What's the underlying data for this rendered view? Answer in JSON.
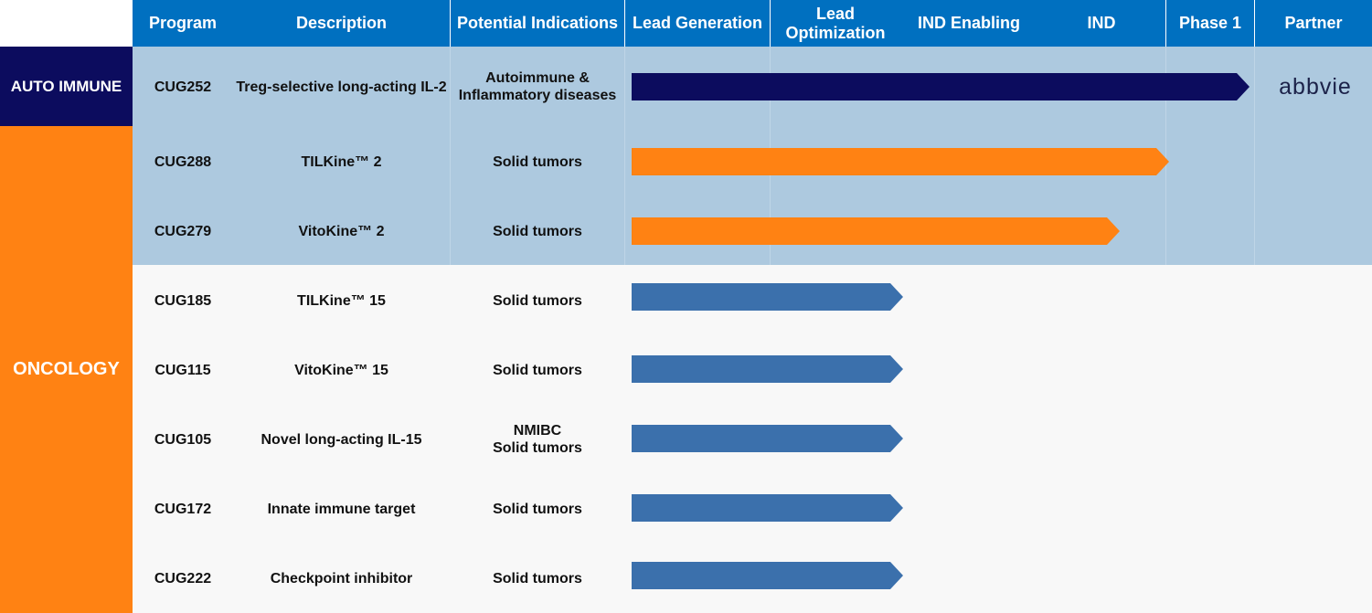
{
  "header": {
    "program": "Program",
    "description": "Description",
    "indications": "Potential Indications",
    "lead_generation": "Lead Generation",
    "lead_optimization_line1": "Lead",
    "lead_optimization_line2": "Optimization",
    "ind_enabling": "IND Enabling",
    "ind": "IND",
    "phase1": "Phase 1",
    "partner": "Partner"
  },
  "categories": {
    "auto_immune": "AUTO IMMUNE",
    "oncology": "ONCOLOGY"
  },
  "colors": {
    "header_bg": "#0070c0",
    "auto_immune": "#0c0c5e",
    "oncology": "#ff8213",
    "preclinical_arrow": "#3b70ac",
    "band_highlight": "#adc9df",
    "band_plain": "#f8f8f8"
  },
  "rows": [
    {
      "program": "CUG252",
      "description": "Treg-selective long-acting IL-2",
      "indications_line1": "Autoimmune &",
      "indications_line2": "Inflammatory diseases",
      "progress": 1.0,
      "partner": "abbvie"
    },
    {
      "program": "CUG288",
      "description": "TILKine™ 2",
      "indications_line1": "Solid tumors",
      "indications_line2": "",
      "progress": 0.87
    },
    {
      "program": "CUG279",
      "description": "VitoKine™ 2",
      "indications_line1": "Solid tumors",
      "indications_line2": "",
      "progress": 0.79
    },
    {
      "program": "CUG185",
      "description": "TILKine™ 15",
      "indications_line1": "Solid tumors",
      "indications_line2": "",
      "progress": 0.44
    },
    {
      "program": "CUG115",
      "description": "VitoKine™ 15",
      "indications_line1": "Solid tumors",
      "indications_line2": "",
      "progress": 0.44
    },
    {
      "program": "CUG105",
      "description": "Novel long-acting IL-15",
      "indications_line1": "NMIBC",
      "indications_line2": "Solid tumors",
      "progress": 0.44
    },
    {
      "program": "CUG172",
      "description": "Innate immune target",
      "indications_line1": "Solid tumors",
      "indications_line2": "",
      "progress": 0.44
    },
    {
      "program": "CUG222",
      "description": "Checkpoint inhibitor",
      "indications_line1": "Solid tumors",
      "indications_line2": "",
      "progress": 0.44
    }
  ]
}
